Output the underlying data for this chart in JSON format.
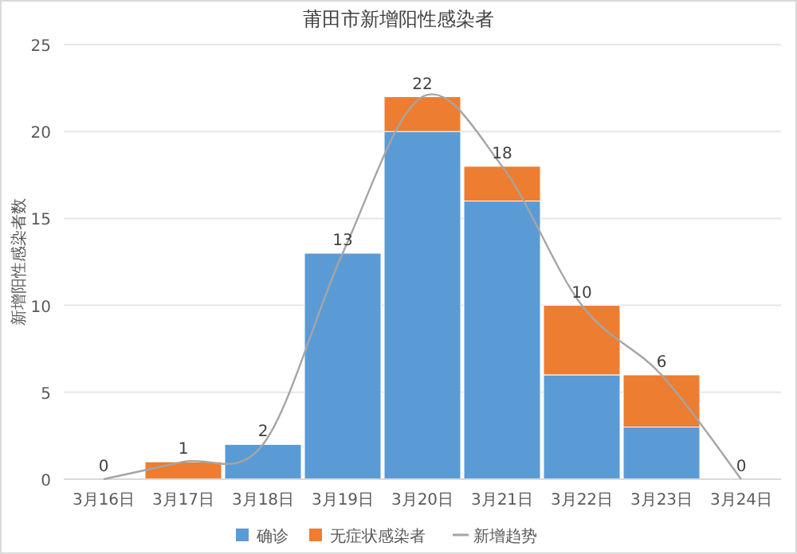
{
  "chart_data": {
    "type": "bar",
    "title": "莆田市新增阳性感染者",
    "ylabel": "新增阳性感染者数",
    "categories": [
      "3月16日",
      "3月17日",
      "3月18日",
      "3月19日",
      "3月20日",
      "3月21日",
      "3月22日",
      "3月23日",
      "3月24日"
    ],
    "stacked": true,
    "series": [
      {
        "name": "确诊",
        "color": "#5b9bd5",
        "values": [
          0,
          0,
          2,
          13,
          20,
          16,
          6,
          3,
          0
        ]
      },
      {
        "name": "无症状感染者",
        "color": "#ed7d31",
        "values": [
          0,
          1,
          0,
          0,
          2,
          2,
          4,
          3,
          0
        ]
      },
      {
        "name": "新增趋势",
        "type": "line",
        "color": "#a5a5a5",
        "values": [
          0,
          1,
          2,
          13,
          22,
          18,
          10,
          6,
          0
        ]
      }
    ],
    "totals": [
      "0",
      "1",
      "2",
      "13",
      "22",
      "18",
      "10",
      "6",
      "0"
    ],
    "ylim": [
      0,
      25
    ],
    "yticks": [
      0,
      5,
      10,
      15,
      20,
      25
    ],
    "grid": "y",
    "legend": "bottom",
    "marker": "none"
  }
}
